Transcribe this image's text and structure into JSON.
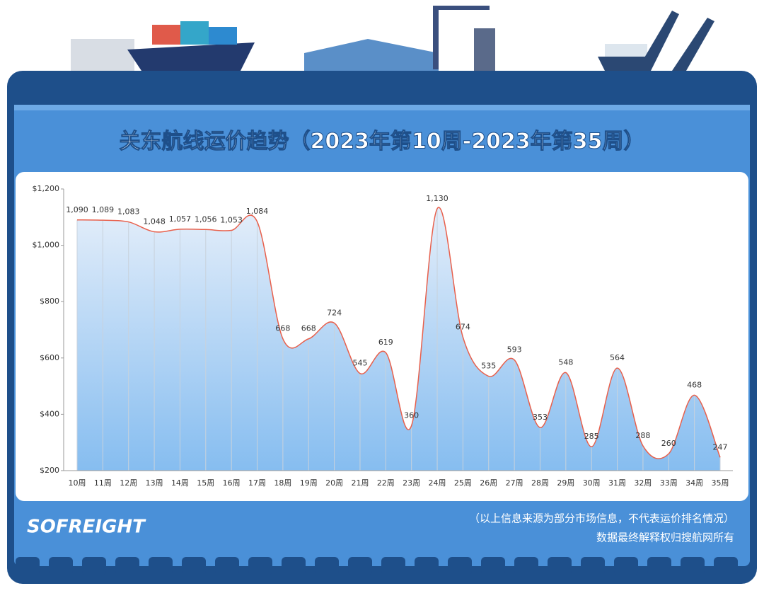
{
  "chart_data": {
    "type": "line",
    "title": "关东航线运价趋势（2023年第10周-2023年第35周）",
    "categories": [
      "10周",
      "11周",
      "12周",
      "13周",
      "14周",
      "15周",
      "16周",
      "17周",
      "18周",
      "19周",
      "20周",
      "21周",
      "22周",
      "23周",
      "24周",
      "25周",
      "26周",
      "27周",
      "28周",
      "29周",
      "30周",
      "31周",
      "32周",
      "33周",
      "34周",
      "35周"
    ],
    "values": [
      1090,
      1089,
      1083,
      1048,
      1057,
      1056,
      1053,
      1084,
      668,
      668,
      724,
      545,
      619,
      360,
      1130,
      674,
      535,
      593,
      353,
      548,
      285,
      564,
      288,
      260,
      468,
      247
    ],
    "value_labels": [
      "1,090",
      "1,089",
      "1,083",
      "1,048",
      "1,057",
      "1,056",
      "1,053",
      "1,084",
      "668",
      "668",
      "724",
      "545",
      "619",
      "360",
      "1,130",
      "674",
      "535",
      "593",
      "353",
      "548",
      "285",
      "564",
      "288",
      "260",
      "468",
      "247"
    ],
    "color": "#e8604c",
    "ylim": [
      200,
      1200
    ],
    "yticks": [
      {
        "value": 200,
        "label": "$200"
      },
      {
        "value": 400,
        "label": "$400"
      },
      {
        "value": 600,
        "label": "$600"
      },
      {
        "value": 800,
        "label": "$800"
      },
      {
        "value": 1000,
        "label": "$1,000"
      },
      {
        "value": 1200,
        "label": "$1,200"
      }
    ],
    "logo": "SOFREIGHT",
    "notes": [
      "（以上信息来源为部分市场信息，不代表运价排名情况）",
      "数据最终解释权归搜航网所有"
    ]
  }
}
